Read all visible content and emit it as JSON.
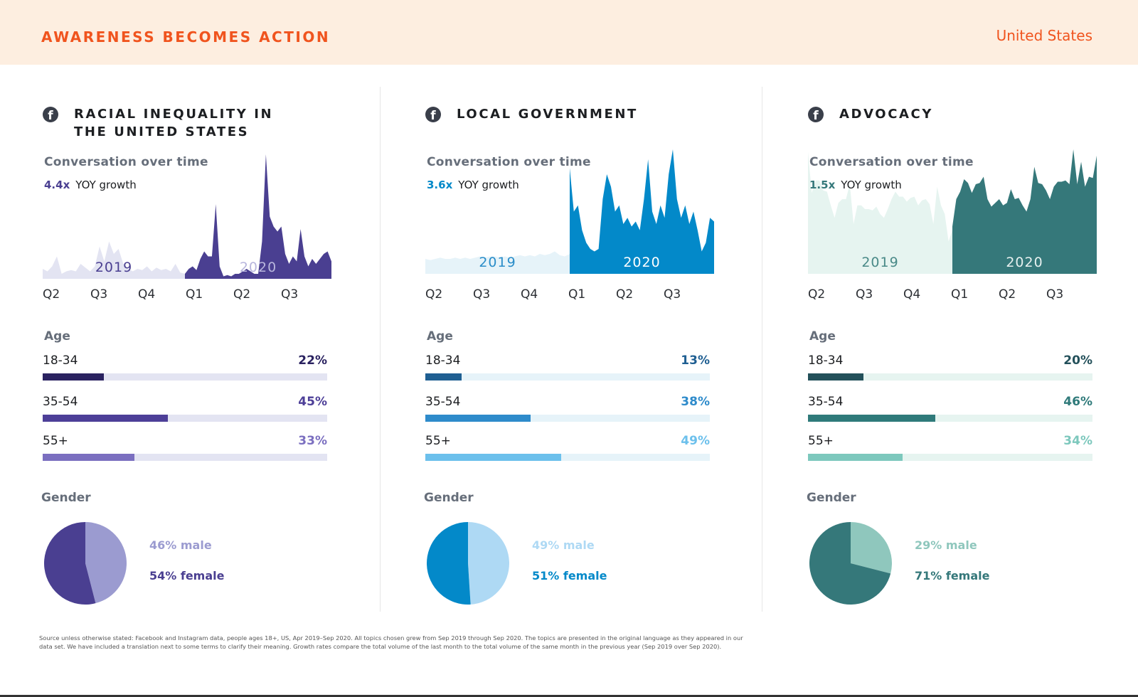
{
  "header": {
    "title": "AWARENESS BECOMES ACTION",
    "country": "United States"
  },
  "labels": {
    "conversation": "Conversation over time",
    "yoy": "YOY growth",
    "age": "Age",
    "gender": "Gender"
  },
  "footnote": "Source unless otherwise stated: Facebook and Instagram data, people ages 18+, US, Apr 2019–Sep 2020. All topics chosen grew from Sep 2019 through Sep 2020. The topics are presented in the original language as they appeared in our data set. We have included a translation next to some terms to clarify their meaning. Growth rates compare the total volume of the last month to the total volume of the same month in the previous year (Sep 2019 over Sep 2020).",
  "chart_data": [
    {
      "type": "area",
      "title": "RACIAL INEQUALITY IN THE UNITED STATES",
      "title_lines": [
        "RACIAL INEQUALITY IN",
        "THE UNITED STATES"
      ],
      "growth": "4.4x",
      "x_ticks": [
        "Q2",
        "Q3",
        "Q4",
        "Q1",
        "Q2",
        "Q3"
      ],
      "year_labels": [
        "2019",
        "2020"
      ],
      "ylim": [
        0,
        100
      ],
      "series": [
        {
          "name": "2019",
          "values": [
            8,
            6,
            10,
            18,
            4,
            6,
            7,
            6,
            12,
            9,
            6,
            10,
            26,
            14,
            30,
            20,
            24,
            12,
            8,
            6,
            8,
            7,
            10,
            6,
            9,
            7,
            8,
            6,
            12,
            5,
            4
          ]
        },
        {
          "name": "2020",
          "values": [
            4,
            8,
            10,
            7,
            16,
            22,
            18,
            18,
            60,
            10,
            2,
            3,
            2,
            4,
            4,
            6,
            8,
            6,
            4,
            4,
            30,
            100,
            50,
            42,
            38,
            42,
            20,
            12,
            18,
            14,
            40,
            18,
            10,
            16,
            12,
            16,
            20,
            22,
            14
          ]
        }
      ],
      "age": [
        {
          "label": "18-34",
          "value": 22,
          "text": "22%"
        },
        {
          "label": "35-54",
          "value": 45,
          "text": "45%"
        },
        {
          "label": "55+",
          "value": 33,
          "text": "33%"
        }
      ],
      "gender": {
        "male": 46,
        "female": 54,
        "male_text": "46% male",
        "female_text": "54% female"
      },
      "colors": {
        "light": "#e3e4f2",
        "main": "#4a3f91",
        "bars": [
          "#2a2260",
          "#4d3f98",
          "#7b6fc0"
        ],
        "male": "#9b9bd0",
        "year2019": "#4a3f91",
        "year2020": "#b8b6dd"
      }
    },
    {
      "type": "area",
      "title": "LOCAL GOVERNMENT",
      "title_lines": [
        "LOCAL GOVERNMENT"
      ],
      "growth": "3.6x",
      "x_ticks": [
        "Q2",
        "Q3",
        "Q4",
        "Q1",
        "Q2",
        "Q3"
      ],
      "year_labels": [
        "2019",
        "2020"
      ],
      "ylim": [
        0,
        100
      ],
      "series": [
        {
          "name": "2019",
          "values": [
            12,
            11,
            12,
            13,
            12,
            12,
            13,
            12,
            13,
            12,
            13,
            14,
            13,
            14,
            14,
            13,
            14,
            13,
            14,
            15,
            14,
            15,
            14,
            16,
            15,
            16,
            18,
            15,
            14,
            16
          ]
        },
        {
          "name": "2020",
          "values": [
            85,
            50,
            55,
            35,
            25,
            20,
            18,
            20,
            60,
            80,
            70,
            50,
            55,
            40,
            45,
            38,
            42,
            35,
            60,
            92,
            50,
            40,
            55,
            45,
            80,
            100,
            60,
            45,
            55,
            40,
            50,
            35,
            18,
            25,
            45,
            42
          ]
        }
      ],
      "age": [
        {
          "label": "18-34",
          "value": 13,
          "text": "13%"
        },
        {
          "label": "35-54",
          "value": 38,
          "text": "38%"
        },
        {
          "label": "55+",
          "value": 49,
          "text": "49%"
        }
      ],
      "gender": {
        "male": 49,
        "female": 51,
        "male_text": "49% male",
        "female_text": "51% female"
      },
      "colors": {
        "light": "#e6f3f9",
        "main": "#0389c9",
        "bars": [
          "#1f5f92",
          "#2e8bcb",
          "#6cc0ec"
        ],
        "male": "#aed9f4",
        "year2019": "#2a8dc9",
        "year2020": "#ffffff"
      }
    },
    {
      "type": "area",
      "title": "ADVOCACY",
      "title_lines": [
        "ADVOCACY"
      ],
      "growth": "1.5x",
      "x_ticks": [
        "Q2",
        "Q3",
        "Q4",
        "Q1",
        "Q2",
        "Q3"
      ],
      "year_labels": [
        "2019",
        "2020"
      ],
      "ylim": [
        0,
        100
      ],
      "series": [
        {
          "name": "2019",
          "values": [
            98,
            65,
            75,
            75,
            67,
            66,
            55,
            45,
            57,
            60,
            60,
            72,
            40,
            55,
            55,
            52,
            52,
            51,
            54,
            48,
            45,
            52,
            60,
            66,
            62,
            62,
            58,
            61,
            62,
            55,
            59,
            60,
            56,
            40,
            70,
            55,
            48,
            26,
            35
          ]
        },
        {
          "name": "2020",
          "values": [
            38,
            60,
            66,
            76,
            73,
            65,
            72,
            73,
            78,
            60,
            54,
            57,
            60,
            55,
            57,
            68,
            60,
            61,
            55,
            50,
            60,
            86,
            73,
            72,
            67,
            60,
            70,
            74,
            74,
            75,
            72,
            100,
            72,
            90,
            70,
            78,
            77,
            95
          ]
        }
      ],
      "age": [
        {
          "label": "18-34",
          "value": 20,
          "text": "20%"
        },
        {
          "label": "35-54",
          "value": 46,
          "text": "46%"
        },
        {
          "label": "55+",
          "value": 34,
          "text": "34%"
        }
      ],
      "gender": {
        "male": 29,
        "female": 71,
        "male_text": "29% male",
        "female_text": "71% female"
      },
      "colors": {
        "light": "#e6f4f0",
        "main": "#35787a",
        "bars": [
          "#23505a",
          "#2f7a7a",
          "#7dc8bd"
        ],
        "male": "#8fc7bd",
        "year2019": "#4a8a88",
        "year2020": "#e6f0ef"
      }
    }
  ]
}
